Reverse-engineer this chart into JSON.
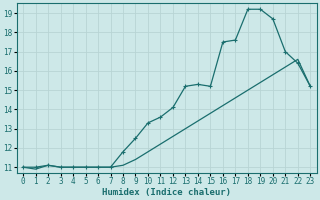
{
  "xlabel": "Humidex (Indice chaleur)",
  "bg_color": "#cde8e8",
  "grid_color": "#b8d4d4",
  "line_color": "#1a6e6e",
  "xlim": [
    -0.5,
    23.5
  ],
  "ylim": [
    10.7,
    19.5
  ],
  "xticks": [
    0,
    1,
    2,
    3,
    4,
    5,
    6,
    7,
    8,
    9,
    10,
    11,
    12,
    13,
    14,
    15,
    16,
    17,
    18,
    19,
    20,
    21,
    22,
    23
  ],
  "yticks": [
    11,
    12,
    13,
    14,
    15,
    16,
    17,
    18,
    19
  ],
  "curve1_x": [
    0,
    1,
    2,
    3,
    4,
    5,
    6,
    7,
    8,
    9,
    10,
    11,
    12,
    13,
    14,
    15,
    16,
    17,
    18,
    19,
    20,
    21,
    22,
    23
  ],
  "curve1_y": [
    11.0,
    10.9,
    11.1,
    11.0,
    11.0,
    11.0,
    11.0,
    11.0,
    11.1,
    11.4,
    11.8,
    12.2,
    12.6,
    13.0,
    13.4,
    13.8,
    14.2,
    14.6,
    15.0,
    15.4,
    15.8,
    16.2,
    16.6,
    15.2
  ],
  "curve2_x": [
    0,
    1,
    2,
    3,
    4,
    5,
    6,
    7,
    8,
    9,
    10,
    11,
    12,
    13,
    14,
    15,
    16,
    17,
    18,
    19,
    20,
    21,
    22,
    23
  ],
  "curve2_y": [
    11.0,
    11.0,
    11.1,
    11.0,
    11.0,
    11.0,
    11.0,
    11.0,
    11.8,
    12.5,
    13.3,
    13.6,
    14.1,
    15.2,
    15.3,
    15.2,
    17.5,
    17.6,
    19.2,
    19.2,
    18.7,
    17.0,
    16.4,
    15.2
  ]
}
